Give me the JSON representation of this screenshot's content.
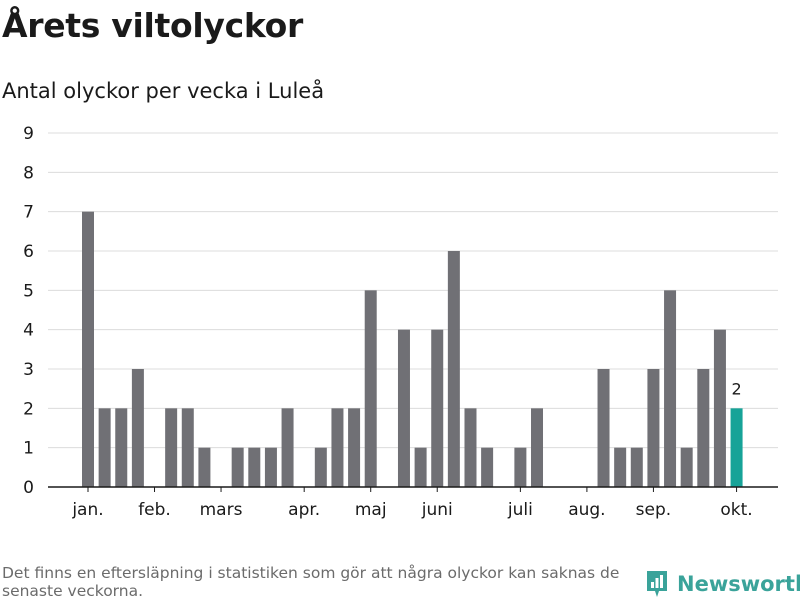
{
  "chart_data": {
    "type": "bar",
    "title": "Årets viltolyckor",
    "subtitle": "Antal olyckor per vecka i Luleå",
    "xlabel": "",
    "ylabel": "",
    "ylim": [
      0,
      9
    ],
    "yticks": [
      0,
      1,
      2,
      3,
      4,
      5,
      6,
      7,
      8,
      9
    ],
    "grid": true,
    "weeks": [
      1,
      2,
      3,
      4,
      5,
      6,
      7,
      8,
      9,
      10,
      11,
      12,
      13,
      14,
      15,
      16,
      17,
      18,
      19,
      20,
      21,
      22,
      23,
      24,
      25,
      26,
      27,
      28,
      29,
      30,
      31,
      32,
      33,
      34,
      35,
      36,
      37,
      38,
      39,
      40
    ],
    "values": [
      7,
      2,
      2,
      3,
      0,
      2,
      2,
      1,
      0,
      1,
      1,
      1,
      2,
      0,
      1,
      2,
      2,
      5,
      0,
      4,
      1,
      4,
      6,
      2,
      1,
      0,
      1,
      2,
      0,
      0,
      0,
      3,
      1,
      1,
      3,
      5,
      1,
      3,
      4,
      2
    ],
    "highlight_index": 39,
    "highlight_label": "2",
    "month_labels": [
      {
        "label": "jan.",
        "week": 1
      },
      {
        "label": "feb.",
        "week": 5
      },
      {
        "label": "mars",
        "week": 9
      },
      {
        "label": "apr.",
        "week": 14
      },
      {
        "label": "maj",
        "week": 18
      },
      {
        "label": "juni",
        "week": 22
      },
      {
        "label": "juli",
        "week": 27
      },
      {
        "label": "aug.",
        "week": 31
      },
      {
        "label": "sep.",
        "week": 35
      },
      {
        "label": "okt.",
        "week": 40
      }
    ],
    "colors": {
      "bar": "#707075",
      "highlight": "#17a398",
      "grid": "#dcdcdc",
      "axis": "#1a1a1a",
      "text": "#1a1a1a"
    }
  },
  "footnote": "Det finns en eftersläpning i statistiken som gör att några olyckor kan saknas de senaste veckorna.",
  "brand": {
    "name": "Newsworthy",
    "icon": "newsworthy-logo-icon",
    "color": "#3aa39a"
  }
}
